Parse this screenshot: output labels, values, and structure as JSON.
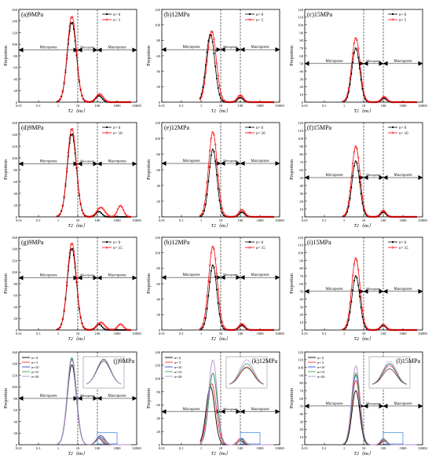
{
  "figure": {
    "x_axis_label": "T2（ms）",
    "y_axis_label": "Proportion",
    "zone_labels": [
      "Micropores",
      "Mesopores",
      "Macropores"
    ]
  },
  "chart_data": [
    {
      "type": "line",
      "title": "(a)9MPa",
      "xlabel": "T2（ms）",
      "ylabel": "Proportion",
      "x_scale": "log",
      "xlim": [
        0.01,
        10000
      ],
      "ylim": [
        0,
        160
      ],
      "x_ticks": [
        "0.01",
        "0.1",
        "1",
        "10",
        "100",
        "1000",
        "10000"
      ],
      "y_ticks": [
        0,
        20,
        40,
        60,
        80,
        100,
        120,
        140,
        160
      ],
      "legend": "top-right",
      "thresholds": [
        10,
        100
      ],
      "zone_arrow_y": 90,
      "series": [
        {
          "name": "n= 0",
          "color": "#000000",
          "peaks": [
            [
              5,
              138,
              0.23
            ],
            [
              120,
              11,
              0.16
            ]
          ]
        },
        {
          "name": "n= 5",
          "color": "#ff0000",
          "peaks": [
            [
              5,
              148,
              0.23
            ],
            [
              130,
              14,
              0.18
            ]
          ]
        }
      ]
    },
    {
      "type": "line",
      "title": "(b)12MPa",
      "xlabel": "T2（ms）",
      "ylabel": "Proportion",
      "x_scale": "log",
      "xlim": [
        0.01,
        10000
      ],
      "ylim": [
        0,
        120
      ],
      "x_ticks": [
        "0.01",
        "0.1",
        "1",
        "10",
        "100",
        "1000",
        "10000"
      ],
      "y_ticks": [
        0,
        20,
        40,
        60,
        80,
        100,
        120
      ],
      "legend": "top-right",
      "thresholds": [
        10,
        100
      ],
      "zone_arrow_y": 68,
      "series": [
        {
          "name": "n= 0",
          "color": "#000000",
          "peaks": [
            [
              3,
              88,
              0.22
            ],
            [
              100,
              6,
              0.14
            ]
          ]
        },
        {
          "name": "n= 5",
          "color": "#ff0000",
          "peaks": [
            [
              3.5,
              92,
              0.23
            ],
            [
              100,
              9,
              0.15
            ]
          ]
        }
      ]
    },
    {
      "type": "line",
      "title": "(c)15MPa",
      "xlabel": "T2（ms）",
      "ylabel": "Proportion",
      "x_scale": "log",
      "xlim": [
        0.01,
        10000
      ],
      "ylim": [
        0,
        120
      ],
      "x_ticks": [
        "0.01",
        "0.1",
        "1",
        "10",
        "100",
        "1000",
        "10000"
      ],
      "y_ticks": [
        0,
        10,
        20,
        30,
        40,
        50,
        60,
        70,
        80,
        90,
        100,
        110,
        120
      ],
      "legend": "top-right",
      "thresholds": [
        10,
        100
      ],
      "zone_arrow_y": 50,
      "series": [
        {
          "name": "n= 0",
          "color": "#000000",
          "peaks": [
            [
              4,
              70,
              0.2
            ],
            [
              110,
              5,
              0.13
            ]
          ]
        },
        {
          "name": "n= 5",
          "color": "#ff0000",
          "peaks": [
            [
              4,
              83,
              0.21
            ],
            [
              110,
              7,
              0.14
            ]
          ]
        }
      ]
    },
    {
      "type": "line",
      "title": "(d)9MPa",
      "xlabel": "T2（ms）",
      "ylabel": "Proportion",
      "x_scale": "log",
      "xlim": [
        0.01,
        10000
      ],
      "ylim": [
        0,
        160
      ],
      "x_ticks": [
        "0.01",
        "0.1",
        "1",
        "10",
        "100",
        "1000",
        "10000"
      ],
      "y_ticks": [
        0,
        20,
        40,
        60,
        80,
        100,
        120,
        140,
        160
      ],
      "legend": "top-right",
      "thresholds": [
        10,
        100
      ],
      "zone_arrow_y": 90,
      "series": [
        {
          "name": "n= 0",
          "color": "#000000",
          "peaks": [
            [
              5,
              141,
              0.23
            ],
            [
              120,
              9,
              0.15
            ]
          ]
        },
        {
          "name": "n= 10",
          "color": "#ff0000",
          "peaks": [
            [
              5,
              150,
              0.23
            ],
            [
              150,
              16,
              0.2
            ],
            [
              1500,
              19,
              0.15
            ]
          ]
        }
      ]
    },
    {
      "type": "line",
      "title": "(e)12MPa",
      "xlabel": "T2（ms）",
      "ylabel": "Proportion",
      "x_scale": "log",
      "xlim": [
        0.01,
        10000
      ],
      "ylim": [
        0,
        120
      ],
      "x_ticks": [
        "0.01",
        "0.1",
        "1",
        "10",
        "100",
        "1000",
        "10000"
      ],
      "y_ticks": [
        0,
        20,
        40,
        60,
        80,
        100,
        120
      ],
      "legend": "top-right",
      "thresholds": [
        10,
        100
      ],
      "zone_arrow_y": 68,
      "series": [
        {
          "name": "n= 0",
          "color": "#000000",
          "peaks": [
            [
              4,
              86,
              0.2
            ],
            [
              120,
              6,
              0.14
            ]
          ]
        },
        {
          "name": "n= 10",
          "color": "#ff0000",
          "peaks": [
            [
              4,
              108,
              0.22
            ],
            [
              120,
              9,
              0.15
            ]
          ]
        }
      ]
    },
    {
      "type": "line",
      "title": "(f)15MPa",
      "xlabel": "T2（ms）",
      "ylabel": "Proportion",
      "x_scale": "log",
      "xlim": [
        0.01,
        10000
      ],
      "ylim": [
        0,
        120
      ],
      "x_ticks": [
        "0.01",
        "0.1",
        "1",
        "10",
        "100",
        "1000",
        "10000"
      ],
      "y_ticks": [
        0,
        10,
        20,
        30,
        40,
        50,
        60,
        70,
        80,
        90,
        100,
        110,
        120
      ],
      "legend": "top-right",
      "thresholds": [
        10,
        100
      ],
      "zone_arrow_y": 50,
      "series": [
        {
          "name": "n= 0",
          "color": "#000000",
          "peaks": [
            [
              4,
              71,
              0.2
            ],
            [
              100,
              6,
              0.13
            ]
          ]
        },
        {
          "name": "n= 10",
          "color": "#ff0000",
          "peaks": [
            [
              4,
              90,
              0.21
            ],
            [
              100,
              8,
              0.14
            ]
          ]
        }
      ]
    },
    {
      "type": "line",
      "title": "(g)9MPa",
      "xlabel": "T2（ms）",
      "ylabel": "Proportion",
      "x_scale": "log",
      "xlim": [
        0.01,
        10000
      ],
      "ylim": [
        0,
        160
      ],
      "x_ticks": [
        "0.01",
        "0.1",
        "1",
        "10",
        "100",
        "1000",
        "10000"
      ],
      "y_ticks": [
        0,
        20,
        40,
        60,
        80,
        100,
        120,
        140,
        160
      ],
      "legend": "top-right",
      "thresholds": [
        10,
        100
      ],
      "zone_arrow_y": 90,
      "series": [
        {
          "name": "n= 0",
          "color": "#000000",
          "peaks": [
            [
              5,
              141,
              0.23
            ],
            [
              120,
              10,
              0.15
            ]
          ]
        },
        {
          "name": "n= 15",
          "color": "#ff0000",
          "peaks": [
            [
              5,
              150,
              0.23
            ],
            [
              150,
              13,
              0.2
            ],
            [
              1500,
              10,
              0.15
            ]
          ]
        }
      ]
    },
    {
      "type": "line",
      "title": "(h)12MPa",
      "xlabel": "T2（ms）",
      "ylabel": "Proportion",
      "x_scale": "log",
      "xlim": [
        0.01,
        10000
      ],
      "ylim": [
        0,
        120
      ],
      "x_ticks": [
        "0.01",
        "0.1",
        "1",
        "10",
        "100",
        "1000",
        "10000"
      ],
      "y_ticks": [
        0,
        20,
        40,
        60,
        80,
        100,
        120
      ],
      "legend": "top-right",
      "thresholds": [
        10,
        100
      ],
      "zone_arrow_y": 68,
      "series": [
        {
          "name": "n= 0",
          "color": "#000000",
          "peaks": [
            [
              4,
              84,
              0.2
            ],
            [
              120,
              6,
              0.14
            ]
          ]
        },
        {
          "name": "n= 15",
          "color": "#ff0000",
          "peaks": [
            [
              4,
              108,
              0.22
            ],
            [
              120,
              8,
              0.15
            ]
          ]
        }
      ]
    },
    {
      "type": "line",
      "title": "(i)15MPa",
      "xlabel": "T2（ms）",
      "ylabel": "Proportion",
      "x_scale": "log",
      "xlim": [
        0.01,
        10000
      ],
      "ylim": [
        0,
        120
      ],
      "x_ticks": [
        "0.01",
        "0.1",
        "1",
        "10",
        "100",
        "1000",
        "10000"
      ],
      "y_ticks": [
        0,
        10,
        20,
        30,
        40,
        50,
        60,
        70,
        80,
        90,
        100,
        110,
        120
      ],
      "legend": "top-right",
      "thresholds": [
        10,
        100
      ],
      "zone_arrow_y": 50,
      "series": [
        {
          "name": "n= 0",
          "color": "#000000",
          "peaks": [
            [
              4,
              70,
              0.2
            ],
            [
              100,
              6,
              0.13
            ]
          ]
        },
        {
          "name": "n= 15",
          "color": "#ff0000",
          "peaks": [
            [
              4,
              93,
              0.21
            ],
            [
              100,
              7,
              0.14
            ]
          ]
        }
      ]
    },
    {
      "type": "line",
      "title": "(j)9MPa",
      "xlabel": "T2（ms）",
      "ylabel": "Proportion",
      "x_scale": "log",
      "xlim": [
        0.01,
        10000
      ],
      "ylim": [
        0,
        160
      ],
      "x_ticks": [
        "0.01",
        "0.1",
        "1",
        "10",
        "100",
        "1000",
        "10000"
      ],
      "y_ticks": [
        0,
        20,
        40,
        60,
        80,
        100,
        120,
        140,
        160
      ],
      "legend": "top-left",
      "thresholds": [
        10,
        100
      ],
      "zone_arrow_y": 80,
      "series": [
        {
          "name": "n= 0",
          "color": "#000000",
          "peaks": [
            [
              5,
              138,
              0.23
            ],
            [
              120,
              11,
              0.16
            ]
          ]
        },
        {
          "name": "n= 5",
          "color": "#ff2a2a",
          "peaks": [
            [
              5,
              148,
              0.23
            ],
            [
              130,
              14,
              0.18
            ]
          ]
        },
        {
          "name": "n=10",
          "color": "#2a4fd6",
          "peaks": [
            [
              5,
              150,
              0.23
            ],
            [
              150,
              16,
              0.2
            ]
          ]
        },
        {
          "name": "n=15",
          "color": "#3aa64a",
          "peaks": [
            [
              5,
              150,
              0.23
            ],
            [
              150,
              13,
              0.2
            ]
          ]
        },
        {
          "name": "n=20",
          "color": "#b58ad6",
          "peaks": [
            [
              5,
              146,
              0.23
            ],
            [
              150,
              12,
              0.2
            ]
          ]
        }
      ],
      "inset": true
    },
    {
      "type": "line",
      "title": "(k)12MPa",
      "xlabel": "T2（ms）",
      "ylabel": "Proportion",
      "x_scale": "log",
      "xlim": [
        0.01,
        10000
      ],
      "ylim": [
        0,
        140
      ],
      "x_ticks": [
        "0.01",
        "0.1",
        "1",
        "10",
        "100",
        "1000",
        "10000"
      ],
      "y_ticks": [
        0,
        20,
        40,
        60,
        80,
        100,
        120,
        140
      ],
      "legend": "top-left",
      "thresholds": [
        10,
        100
      ],
      "zone_arrow_y": 50,
      "series": [
        {
          "name": "n= 0",
          "color": "#000000",
          "peaks": [
            [
              3,
              88,
              0.22
            ],
            [
              100,
              6,
              0.14
            ]
          ]
        },
        {
          "name": "n= 5",
          "color": "#ff2a2a",
          "peaks": [
            [
              3.5,
              92,
              0.23
            ],
            [
              100,
              9,
              0.15
            ]
          ]
        },
        {
          "name": "n=10",
          "color": "#2a4fd6",
          "peaks": [
            [
              4,
              108,
              0.22
            ],
            [
              120,
              9,
              0.15
            ]
          ]
        },
        {
          "name": "n=15",
          "color": "#3aa64a",
          "peaks": [
            [
              4,
              108,
              0.22
            ],
            [
              120,
              8,
              0.15
            ]
          ]
        },
        {
          "name": "n=20",
          "color": "#b58ad6",
          "peaks": [
            [
              4,
              128,
              0.22
            ],
            [
              120,
              10,
              0.15
            ]
          ]
        }
      ],
      "inset": true
    },
    {
      "type": "line",
      "title": "(l)15MPa",
      "xlabel": "T2（ms）",
      "ylabel": "Proportion",
      "x_scale": "log",
      "xlim": [
        0.01,
        10000
      ],
      "ylim": [
        0,
        120
      ],
      "x_ticks": [
        "0.01",
        "0.1",
        "1",
        "10",
        "100",
        "1000",
        "10000"
      ],
      "y_ticks": [
        0,
        10,
        20,
        30,
        40,
        50,
        60,
        70,
        80,
        90,
        100,
        110,
        120
      ],
      "legend": "top-left",
      "thresholds": [
        10,
        100
      ],
      "zone_arrow_y": 50,
      "series": [
        {
          "name": "n= 0",
          "color": "#000000",
          "peaks": [
            [
              4,
              70,
              0.2
            ],
            [
              110,
              5,
              0.13
            ]
          ]
        },
        {
          "name": "n= 5",
          "color": "#ff2a2a",
          "peaks": [
            [
              4,
              83,
              0.21
            ],
            [
              110,
              7,
              0.14
            ]
          ]
        },
        {
          "name": "n=10",
          "color": "#2a4fd6",
          "peaks": [
            [
              4,
              90,
              0.21
            ],
            [
              100,
              8,
              0.14
            ]
          ]
        },
        {
          "name": "n=15",
          "color": "#3aa64a",
          "peaks": [
            [
              4,
              93,
              0.21
            ],
            [
              100,
              7,
              0.14
            ]
          ]
        },
        {
          "name": "n=20",
          "color": "#b58ad6",
          "peaks": [
            [
              4,
              102,
              0.21
            ],
            [
              100,
              8,
              0.14
            ]
          ]
        }
      ],
      "inset": true
    }
  ]
}
